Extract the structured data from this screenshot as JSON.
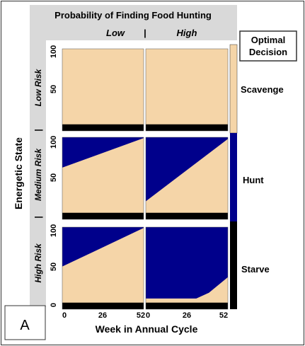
{
  "panel_letter": "A",
  "chart_data": {
    "type": "heatmap",
    "title": "Probability of Finding Food Hunting",
    "column_headers": [
      "Low",
      "High"
    ],
    "column_separator": "|",
    "row_headers": [
      "Low Risk",
      "Medium Risk",
      "High Risk"
    ],
    "row_separator": "|",
    "xlabel": "Week in Annual Cycle",
    "ylabel": "Energetic State",
    "x_ticks": [
      0,
      26,
      52
    ],
    "y_ticks": [
      0,
      50,
      100
    ],
    "xlim": [
      0,
      52
    ],
    "ylim": [
      0,
      100
    ],
    "legend": {
      "title": [
        "Optimal",
        "Decision"
      ],
      "placement": "right",
      "entries": [
        {
          "label": "Scavenge",
          "color": "#f5d5a8"
        },
        {
          "label": "Hunt",
          "color": "#00008b"
        },
        {
          "label": "Starve",
          "color": "#000000"
        }
      ]
    },
    "colors": {
      "scavenge": "#f5d5a8",
      "hunt": "#00008b",
      "starve": "#000000",
      "strip": "#d9d9d9"
    },
    "panels": [
      {
        "row": "Low Risk",
        "col": "Low",
        "starve_below": 8,
        "hunt_above": [
          [
            0,
            101
          ],
          [
            52,
            101
          ]
        ],
        "hunt_bottom_edge": null
      },
      {
        "row": "Low Risk",
        "col": "High",
        "starve_below": 8,
        "hunt_above": [
          [
            0,
            101
          ],
          [
            52,
            101
          ]
        ],
        "hunt_bottom_edge": null
      },
      {
        "row": "Medium Risk",
        "col": "Low",
        "starve_below": 8,
        "hunt_above": [
          [
            0,
            63
          ],
          [
            52,
            99
          ]
        ],
        "hunt_bottom_edge": null
      },
      {
        "row": "Medium Risk",
        "col": "High",
        "starve_below": 8,
        "hunt_above": [
          [
            0,
            22
          ],
          [
            52,
            98
          ]
        ],
        "hunt_bottom_edge": null
      },
      {
        "row": "High Risk",
        "col": "Low",
        "starve_below": 8,
        "hunt_above": [
          [
            0,
            52
          ],
          [
            52,
            99
          ]
        ],
        "hunt_bottom_edge": null
      },
      {
        "row": "High Risk",
        "col": "High",
        "starve_below": 8,
        "hunt_above": null,
        "hunt_bottom_edge": [
          [
            0,
            13
          ],
          [
            32,
            13
          ],
          [
            40,
            20
          ],
          [
            52,
            39
          ]
        ]
      }
    ]
  }
}
